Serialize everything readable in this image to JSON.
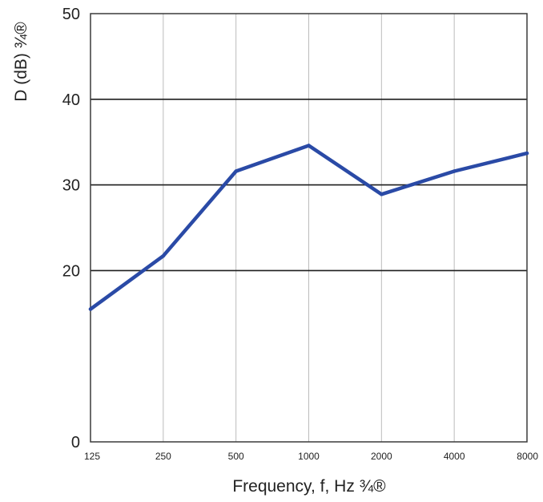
{
  "chart_data": {
    "type": "line",
    "title": "",
    "xlabel": "Frequency, f, Hz ¾®",
    "ylabel": "D (dB) ¾®",
    "x_scale": "categorical",
    "categories": [
      "125",
      "250",
      "500",
      "1000",
      "2000",
      "4000",
      "8000"
    ],
    "series": [
      {
        "values": [
          15.5,
          21.7,
          31.6,
          34.6,
          28.9,
          31.6,
          33.7
        ]
      }
    ],
    "ylim": [
      0,
      50
    ],
    "yticks": [
      "0",
      "20",
      "30",
      "40",
      "50"
    ],
    "grid": {
      "horizontal": [
        20,
        30,
        40
      ],
      "vertical": true
    },
    "legend": "none",
    "colors": {
      "series_line": "#2a4aa6",
      "grid_dark": "#1e1e1e",
      "grid_light": "#bcbcbc",
      "frame": "#3a3a3a"
    }
  }
}
